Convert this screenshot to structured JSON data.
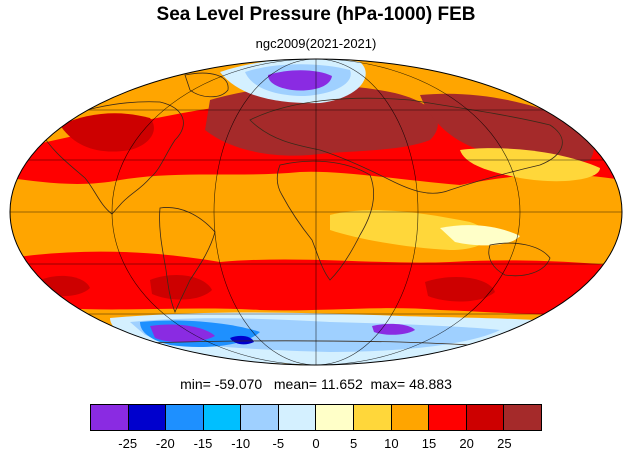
{
  "title": "Sea Level Pressure (hPa-1000) FEB",
  "subtitle": "ngc2009(2021-2021)",
  "stats": {
    "min_label": "min=",
    "min_value": "-59.070",
    "mean_label": "mean=",
    "mean_value": "11.652",
    "max_label": "max=",
    "max_value": "48.883"
  },
  "colorbar": {
    "colors": [
      "#8a2be2",
      "#0000cd",
      "#1e90ff",
      "#00bfff",
      "#9fd0ff",
      "#d4f0ff",
      "#ffffc8",
      "#ffd73a",
      "#ffa500",
      "#ff0000",
      "#cd0000",
      "#a52a2a"
    ],
    "tick_labels": [
      "-25",
      "-20",
      "-15",
      "-10",
      "-5",
      "0",
      "5",
      "10",
      "15",
      "20",
      "25"
    ]
  },
  "map_colors": {
    "ocean_base": "#ffa500",
    "high_belt": "#ff0000",
    "very_high": "#a52a2a",
    "high_core": "#cd0000",
    "moderate": "#ffd73a",
    "weak": "#ffffc8",
    "low_light": "#d4f0ff",
    "low_mid": "#9fd0ff",
    "low_deep": "#1e90ff",
    "low_core": "#8a2be2",
    "low_blue": "#0000cd"
  }
}
